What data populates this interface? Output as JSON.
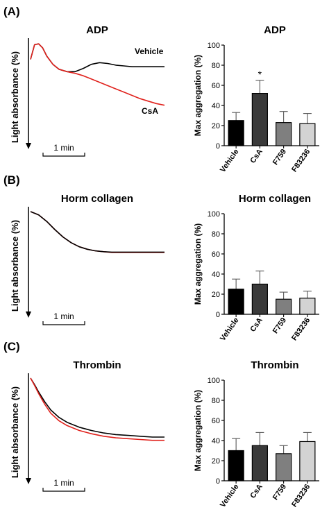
{
  "panels": [
    {
      "tag": "(A)",
      "trace": {
        "title": "ADP",
        "ylabel": "Light absorbance (%)",
        "scale_label": "1 min",
        "labels": [
          "Vehicle",
          "CsA"
        ]
      },
      "bar": {
        "title": "ADP",
        "ylabel": "Max aggregation (%)",
        "annotation": "*"
      }
    },
    {
      "tag": "(B)",
      "trace": {
        "title": "Horm collagen",
        "ylabel": "Light absorbance (%)",
        "scale_label": "1 min",
        "labels": []
      },
      "bar": {
        "title": "Horm collagen",
        "ylabel": "Max aggregation (%)",
        "annotation": ""
      }
    },
    {
      "tag": "(C)",
      "trace": {
        "title": "Thrombin",
        "ylabel": "Light absorbance (%)",
        "scale_label": "1 min",
        "labels": []
      },
      "bar": {
        "title": "Thrombin",
        "ylabel": "Max aggregation (%)",
        "annotation": ""
      }
    }
  ],
  "chart_data": [
    {
      "type": "bar",
      "title": "ADP",
      "xlabel": "",
      "ylabel": "Max aggregation (%)",
      "ylim": [
        0,
        100
      ],
      "yticks": [
        0,
        20,
        40,
        60,
        80,
        100
      ],
      "categories": [
        "Vehicle",
        "CsA",
        "F759",
        "F83236"
      ],
      "values": [
        25,
        52,
        23,
        22
      ],
      "errors": [
        8,
        13,
        11,
        10
      ],
      "colors": [
        "#000000",
        "#3a3a3a",
        "#7f7f7f",
        "#d3d3d3"
      ],
      "significance": [
        "",
        "*",
        "",
        ""
      ]
    },
    {
      "type": "bar",
      "title": "Horm collagen",
      "xlabel": "",
      "ylabel": "Max aggregation (%)",
      "ylim": [
        0,
        100
      ],
      "yticks": [
        0,
        20,
        40,
        60,
        80,
        100
      ],
      "categories": [
        "Vehicle",
        "CsA",
        "F759",
        "F83236"
      ],
      "values": [
        25,
        30,
        15,
        16
      ],
      "errors": [
        10,
        13,
        7,
        7
      ],
      "colors": [
        "#000000",
        "#3a3a3a",
        "#7f7f7f",
        "#d3d3d3"
      ],
      "significance": [
        "",
        "",
        "",
        ""
      ]
    },
    {
      "type": "bar",
      "title": "Thrombin",
      "xlabel": "",
      "ylabel": "Max aggregation (%)",
      "ylim": [
        0,
        100
      ],
      "yticks": [
        0,
        20,
        40,
        60,
        80,
        100
      ],
      "categories": [
        "Vehicle",
        "CsA",
        "F759",
        "F83236"
      ],
      "values": [
        30,
        35,
        27,
        39
      ],
      "errors": [
        12,
        13,
        8,
        9
      ],
      "colors": [
        "#000000",
        "#3a3a3a",
        "#7f7f7f",
        "#d3d3d3"
      ],
      "significance": [
        "",
        "",
        "",
        ""
      ]
    },
    {
      "type": "line",
      "title": "ADP",
      "ylabel": "Light absorbance (%)",
      "x_unit": "min",
      "xlim": [
        0,
        3.3
      ],
      "y_direction": "downward (arrow)",
      "series": [
        {
          "name": "Vehicle",
          "color": "#000000",
          "x": [
            0,
            0.1,
            0.2,
            0.3,
            0.4,
            0.55,
            0.7,
            0.9,
            1.1,
            1.3,
            1.5,
            1.7,
            1.9,
            2.1,
            2.3,
            2.5,
            2.7,
            2.9,
            3.1,
            3.3
          ],
          "y": [
            20,
            2,
            1,
            6,
            16,
            26,
            32,
            35,
            35,
            31,
            26,
            24,
            25,
            27,
            28,
            29,
            29,
            29,
            29,
            29
          ]
        },
        {
          "name": "CsA",
          "color": "#e0201b",
          "x": [
            0,
            0.1,
            0.2,
            0.3,
            0.4,
            0.55,
            0.7,
            0.9,
            1.1,
            1.3,
            1.5,
            1.7,
            1.9,
            2.1,
            2.3,
            2.5,
            2.7,
            2.9,
            3.1,
            3.3
          ],
          "y": [
            20,
            2,
            1,
            6,
            16,
            26,
            32,
            35,
            37,
            40,
            44,
            48,
            52,
            56,
            60,
            64,
            68,
            71,
            74,
            76
          ]
        }
      ]
    },
    {
      "type": "line",
      "title": "Horm collagen",
      "ylabel": "Light absorbance (%)",
      "x_unit": "min",
      "xlim": [
        0,
        3.3
      ],
      "y_direction": "downward (arrow)",
      "series": [
        {
          "name": "",
          "color": "#e0201b",
          "x": [
            0,
            0.2,
            0.4,
            0.6,
            0.8,
            1.0,
            1.2,
            1.4,
            1.6,
            1.8,
            2.0,
            2.4,
            2.8,
            3.3
          ],
          "y": [
            0,
            4,
            12,
            22,
            31,
            38,
            43,
            46,
            48,
            49,
            50,
            50,
            50,
            50
          ]
        },
        {
          "name": "",
          "color": "#000000",
          "x": [
            0,
            0.2,
            0.4,
            0.6,
            0.8,
            1.0,
            1.2,
            1.4,
            1.6,
            1.8,
            2.0,
            2.4,
            2.8,
            3.3
          ],
          "y": [
            0,
            4,
            12,
            22,
            31,
            38,
            43,
            46,
            48,
            49,
            49.5,
            49.5,
            49.5,
            49.5
          ]
        }
      ]
    },
    {
      "type": "line",
      "title": "Thrombin",
      "ylabel": "Light absorbance (%)",
      "x_unit": "min",
      "xlim": [
        0,
        3.3
      ],
      "y_direction": "downward (arrow)",
      "series": [
        {
          "name": "",
          "color": "#000000",
          "x": [
            0,
            0.1,
            0.2,
            0.35,
            0.5,
            0.7,
            0.9,
            1.2,
            1.5,
            1.8,
            2.1,
            2.4,
            2.7,
            3.0,
            3.3
          ],
          "y": [
            0,
            8,
            17,
            29,
            39,
            48,
            54,
            60,
            64,
            67,
            69,
            70,
            71,
            72,
            72
          ]
        },
        {
          "name": "",
          "color": "#e0201b",
          "x": [
            0,
            0.1,
            0.2,
            0.35,
            0.5,
            0.7,
            0.9,
            1.2,
            1.5,
            1.8,
            2.1,
            2.4,
            2.7,
            3.0,
            3.3
          ],
          "y": [
            0,
            9,
            19,
            32,
            43,
            52,
            58,
            64,
            68,
            71,
            73,
            74,
            75,
            76,
            76
          ]
        }
      ]
    }
  ]
}
